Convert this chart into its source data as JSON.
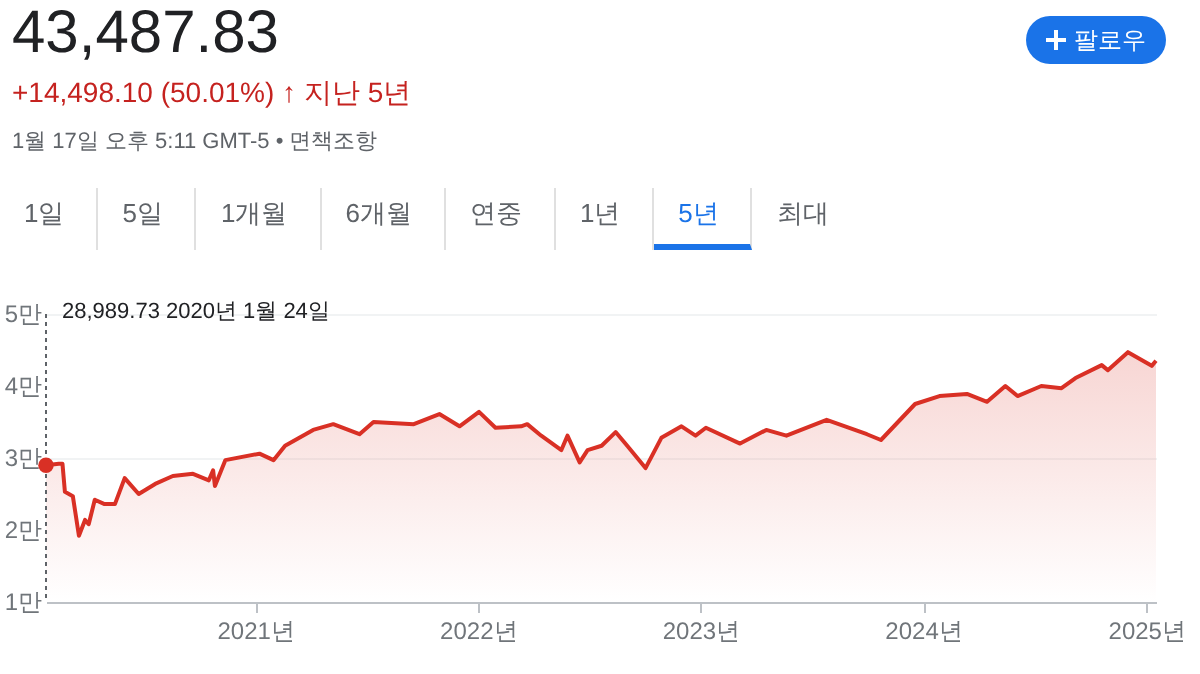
{
  "chart_data": {
    "type": "area",
    "title": "43,487.83",
    "subtitle": "+14,498.10 (50.01%) ↑ 지난 5년",
    "annotations": [
      "1월 17일 오후 5:11 GMT-5 • 면책조항",
      "팔로우",
      "1일",
      "5일",
      "1개월",
      "6개월",
      "연중",
      "1년",
      "5년",
      "최대",
      "28,989.73  2020년 1월 24일"
    ],
    "x": [
      "2020-01-24",
      "2020-02-14",
      "2020-02-20",
      "2020-02-24",
      "2020-03-08",
      "2020-03-18",
      "2020-03-28",
      "2020-04-03",
      "2020-04-13",
      "2020-04-29",
      "2020-05-16",
      "2020-06-01",
      "2020-06-24",
      "2020-07-21",
      "2020-08-19",
      "2020-09-21",
      "2020-10-17",
      "2020-10-24",
      "2020-10-27",
      "2020-11-13",
      "2021-01-08",
      "2021-01-31",
      "2021-02-19",
      "2021-04-06",
      "2021-05-09",
      "2021-06-21",
      "2021-07-14",
      "2021-09-18",
      "2021-10-30",
      "2021-12-02",
      "2022-01-03",
      "2022-01-30",
      "2022-03-13",
      "2022-03-23",
      "2022-04-15",
      "2022-05-18",
      "2022-05-28",
      "2022-06-17",
      "2022-06-30",
      "2022-07-23",
      "2022-08-15",
      "2022-09-03",
      "2022-10-03",
      "2022-10-29",
      "2022-12-01",
      "2022-12-24",
      "2023-01-10",
      "2023-03-07",
      "2023-04-19",
      "2023-05-22",
      "2023-07-27",
      "2023-10-01",
      "2023-10-24",
      "2023-12-19",
      "2024-01-28",
      "2024-03-13",
      "2024-04-15",
      "2024-05-15",
      "2024-06-04",
      "2024-07-13",
      "2024-08-15",
      "2024-09-07",
      "2024-10-20",
      "2024-10-30",
      "2024-12-02",
      "2025-01-10",
      "2025-01-17"
    ],
    "series": [
      {
        "color": "#d93025",
        "values": [
          2.9,
          2.92,
          2.92,
          2.53,
          2.47,
          1.92,
          2.14,
          2.08,
          2.42,
          2.36,
          2.36,
          2.72,
          2.5,
          2.64,
          2.75,
          2.78,
          2.69,
          2.83,
          2.61,
          2.97,
          3.06,
          2.97,
          3.17,
          3.39,
          3.47,
          3.33,
          3.5,
          3.47,
          3.61,
          3.44,
          3.64,
          3.42,
          3.44,
          3.47,
          3.31,
          3.11,
          3.31,
          2.94,
          3.11,
          3.17,
          3.36,
          3.17,
          2.86,
          3.28,
          3.44,
          3.31,
          3.42,
          3.2,
          3.39,
          3.31,
          3.53,
          3.33,
          3.25,
          3.75,
          3.86,
          3.89,
          3.78,
          4.0,
          3.86,
          4.0,
          3.97,
          4.11,
          4.29,
          4.22,
          4.47,
          4.28,
          4.35
        ]
      }
    ],
    "xlim": [
      "2020-01-24",
      "2025-01-17"
    ],
    "xticks": [
      {
        "value": "2021-01-01",
        "label": "2021년"
      },
      {
        "value": "2022-01-01",
        "label": "2022년"
      },
      {
        "value": "2023-01-01",
        "label": "2023년"
      },
      {
        "value": "2024-01-01",
        "label": "2024년"
      },
      {
        "value": "2025-01-01",
        "label": "2025년"
      }
    ],
    "ylim": [
      1,
      5
    ],
    "yticks": [
      {
        "value": 1,
        "label": "1만"
      },
      {
        "value": 2,
        "label": "2만"
      },
      {
        "value": 3,
        "label": "3만"
      },
      {
        "value": 4,
        "label": "4만"
      },
      {
        "value": 5,
        "label": "5만"
      }
    ],
    "grid": "y"
  }
}
